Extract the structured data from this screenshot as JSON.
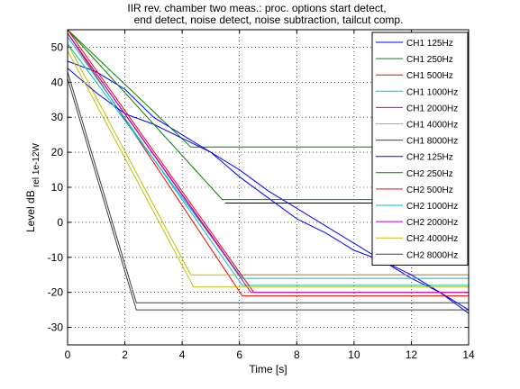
{
  "chart_data": {
    "type": "line",
    "title_lines": [
      "IIR    rev. chamber two meas.: proc. options start detect,",
      "end detect, noise detect, noise subtraction, tailcut comp."
    ],
    "xlabel": "Time [s]",
    "ylabel_main": "Level dB",
    "ylabel_sub": "rel 1e-12W",
    "xlim": [
      0,
      14
    ],
    "ylim": [
      -35,
      55
    ],
    "xticks": [
      0,
      2,
      4,
      6,
      8,
      10,
      12,
      14
    ],
    "yticks": [
      -30,
      -20,
      -10,
      0,
      10,
      20,
      30,
      40,
      50
    ],
    "grid": true,
    "grid_style": "dotted",
    "legend_position": "top-right",
    "series": [
      {
        "name": "CH1 125Hz",
        "color": "#0000ff",
        "x": [
          0,
          1,
          2,
          3,
          4,
          5,
          6,
          7,
          7.5,
          8,
          9,
          10,
          11,
          12,
          13,
          14
        ],
        "y": [
          46,
          43,
          38,
          30,
          25,
          20,
          13,
          7,
          4,
          1,
          -3,
          -8,
          -11,
          -16,
          -20,
          -25
        ]
      },
      {
        "name": "CH1 250Hz",
        "color": "#008000",
        "x": [
          0,
          4.3,
          14
        ],
        "y": [
          55,
          21.5,
          21.5
        ]
      },
      {
        "name": "CH1 500Hz",
        "color": "#ff0000",
        "x": [
          0,
          6.1,
          14
        ],
        "y": [
          54,
          -21,
          -21
        ]
      },
      {
        "name": "CH1 1000Hz",
        "color": "#00bfbf",
        "x": [
          0,
          6.1,
          14
        ],
        "y": [
          53,
          -18,
          -18
        ]
      },
      {
        "name": "CH1 2000Hz",
        "color": "#bf00bf",
        "x": [
          0,
          6.0,
          14
        ],
        "y": [
          54,
          -15,
          -15
        ]
      },
      {
        "name": "CH1 4000Hz",
        "color": "#bfbf00",
        "x": [
          0,
          4.3,
          14
        ],
        "y": [
          51,
          -15,
          -15
        ]
      },
      {
        "name": "CH1 8000Hz",
        "color": "#404040",
        "x": [
          0,
          2.4,
          14
        ],
        "y": [
          43,
          -23,
          -23
        ]
      },
      {
        "name": "CH2 125Hz",
        "color": "#0000ff",
        "x": [
          0,
          1,
          2,
          3,
          4,
          5,
          6,
          7,
          8,
          9,
          10,
          11,
          12,
          13,
          14
        ],
        "y": [
          44,
          37,
          31,
          28,
          24,
          20,
          15,
          9,
          4,
          -1,
          -6,
          -11,
          -15,
          -20,
          -26
        ]
      },
      {
        "name": "CH2 250Hz",
        "color": "#008000",
        "x": [
          0,
          5.4,
          14
        ],
        "y": [
          55,
          6.5,
          6.5
        ]
      },
      {
        "name": "CH2 500Hz",
        "color": "#ff0000",
        "x": [
          0,
          6.5,
          14
        ],
        "y": [
          55,
          -20,
          -20
        ]
      },
      {
        "name": "CH2 1000Hz",
        "color": "#00bfbf",
        "x": [
          0,
          6.1,
          14
        ],
        "y": [
          51,
          -16,
          -16
        ]
      },
      {
        "name": "CH2 2000Hz",
        "color": "#bf00bf",
        "x": [
          0,
          6.4,
          14
        ],
        "y": [
          54,
          -20,
          -20
        ]
      },
      {
        "name": "CH2 4000Hz",
        "color": "#bfbf00",
        "x": [
          0,
          4.4,
          14
        ],
        "y": [
          49,
          -18.5,
          -18.5
        ]
      },
      {
        "name": "CH2 8000Hz",
        "color": "#404040",
        "x": [
          0,
          2.4,
          14
        ],
        "y": [
          41,
          -25,
          -25
        ]
      }
    ],
    "extra_lines": [
      {
        "color": "#000000",
        "x": [
          5.5,
          14
        ],
        "y": [
          5.5,
          5.5
        ]
      }
    ]
  }
}
